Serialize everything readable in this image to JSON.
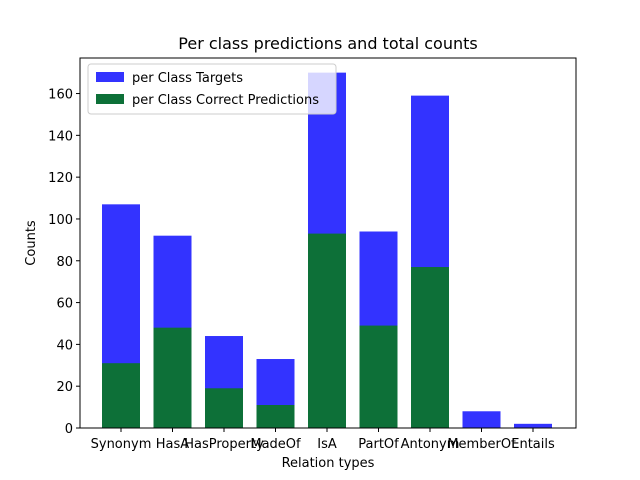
{
  "chart_data": {
    "type": "bar",
    "title": "Per class predictions and total counts",
    "xlabel": "Relation types",
    "ylabel": "Counts",
    "ylim": [
      0,
      177
    ],
    "yticks": [
      0,
      20,
      40,
      60,
      80,
      100,
      120,
      140,
      160
    ],
    "categories": [
      "Synonym",
      "HasA",
      "HasProperty",
      "MadeOf",
      "IsA",
      "PartOf",
      "Antonym",
      "MemberOf",
      "Entails"
    ],
    "series": [
      {
        "name": "per Class Targets",
        "color": "#3333ff",
        "values": [
          107,
          92,
          44,
          33,
          170,
          94,
          159,
          8,
          2
        ]
      },
      {
        "name": "per Class Correct Predictions",
        "color": "#0d7038",
        "values": [
          31,
          48,
          19,
          11,
          93,
          49,
          77,
          0,
          0
        ]
      }
    ],
    "legend": "top-left",
    "grid": false
  }
}
